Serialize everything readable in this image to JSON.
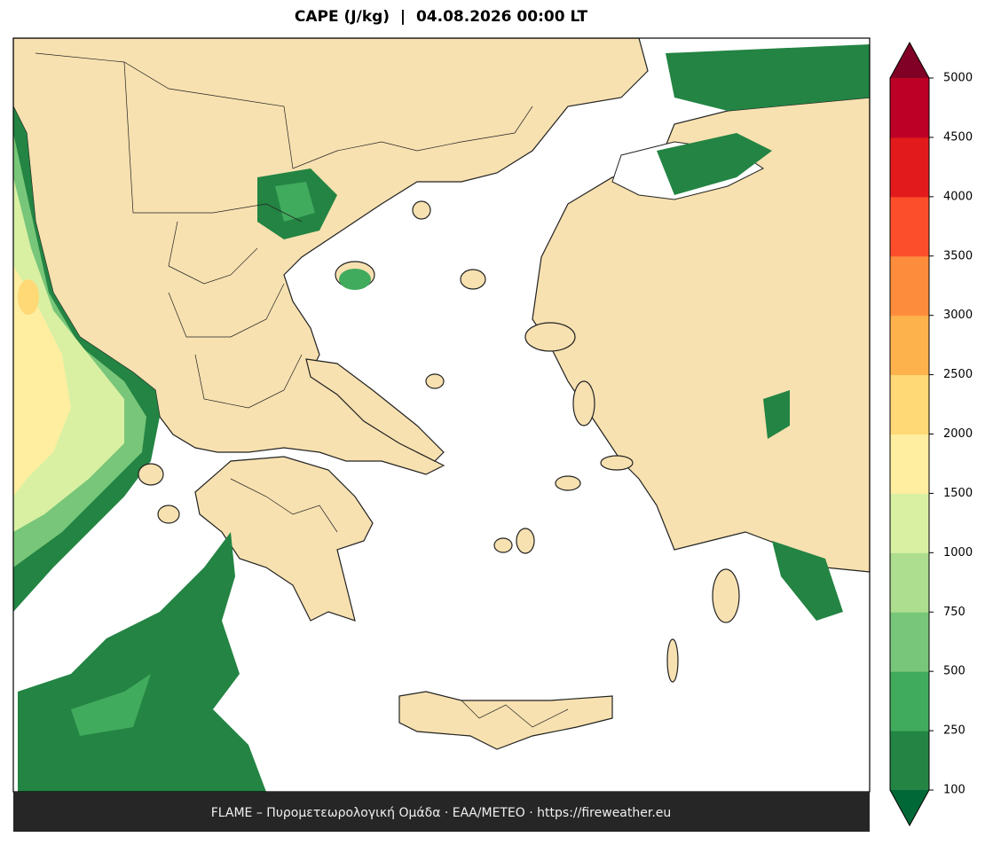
{
  "map": {
    "title": "CAPE (J/kg)  |  04.08.2026 00:00 LT",
    "footer": "FLAME – Πυρομετεωρολογική Ομάδα · ΕΑΑ/METEO · https://fireweather.eu",
    "colorbar": {
      "ticks": [
        100,
        250,
        500,
        750,
        1000,
        1500,
        2000,
        2500,
        3000,
        3500,
        4000,
        4500,
        5000
      ],
      "colors": [
        "#238443",
        "#41ab5d",
        "#78c679",
        "#addd8e",
        "#d9f0a3",
        "#ffeda0",
        "#fed976",
        "#feb24c",
        "#fd8d3c",
        "#fc4e2a",
        "#e31a1c",
        "#bd0026"
      ],
      "under_color": "#006837",
      "over_color": "#800026"
    }
  }
}
